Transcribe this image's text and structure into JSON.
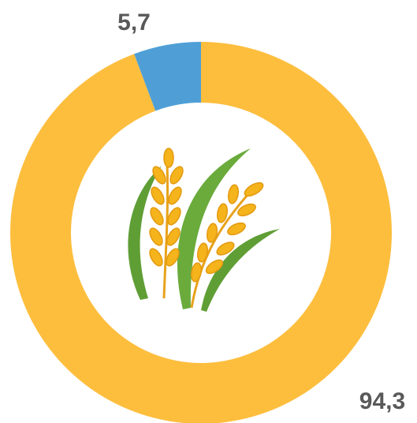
{
  "chart_data": {
    "type": "donut",
    "values": [
      94.3,
      5.7
    ],
    "value_labels": [
      "94,3",
      "5,7"
    ],
    "colors": [
      "#fdbe3e",
      "#4f9fd6"
    ]
  }
}
